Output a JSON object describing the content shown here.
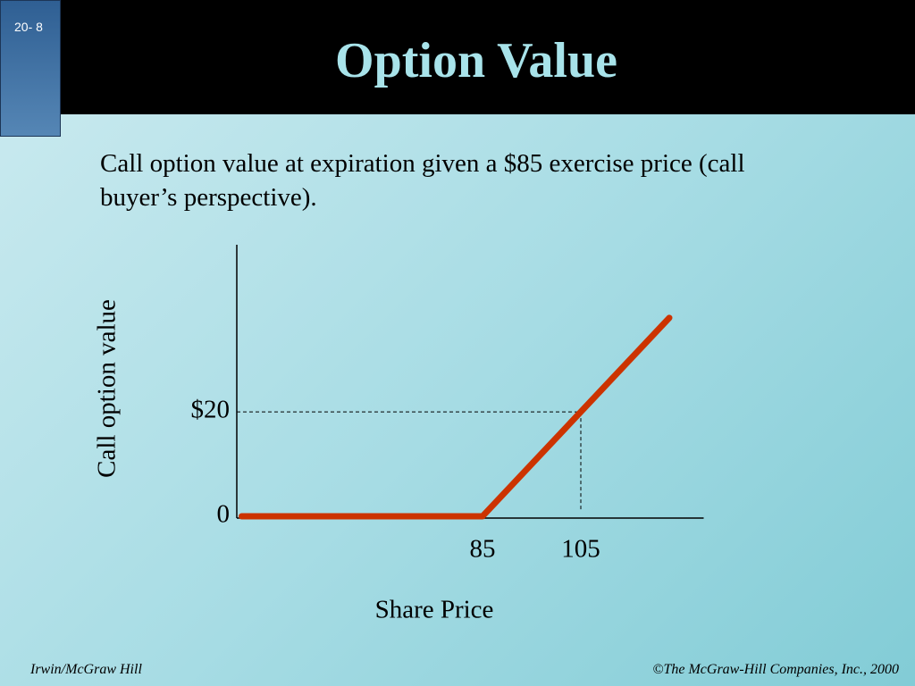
{
  "slide_number": "20- 8",
  "footer_left": "Irwin/McGraw Hill",
  "footer_right": "©The McGraw-Hill Companies, Inc., 2000",
  "chart_data": {
    "type": "line",
    "title": "Option Value",
    "subtitle": "Call option value at expiration given a $85 exercise price (call buyer’s perspective).",
    "x_label": "Share Price",
    "y_label": "Call option value",
    "x": [
      36,
      85,
      123
    ],
    "values": [
      0,
      0,
      38
    ],
    "color": "#cc3300",
    "xlim": [
      35,
      130
    ],
    "ylim": [
      0,
      52
    ],
    "xticks": [
      85,
      105
    ],
    "yticks": [
      0,
      {
        "value": 20,
        "label": "$20"
      }
    ]
  }
}
